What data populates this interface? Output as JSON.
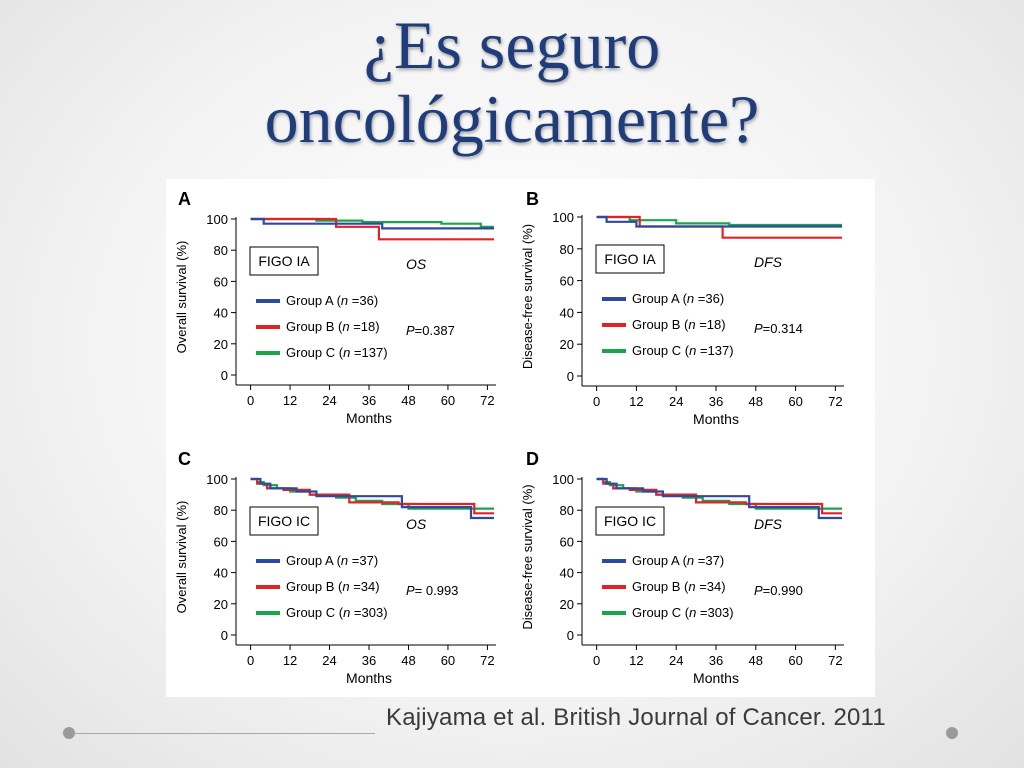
{
  "slide": {
    "title_line1": "¿Es seguro",
    "title_line2": "oncológicamente?",
    "citation": "Kajiyama et al. British Journal of Cancer. 2011"
  },
  "colors": {
    "title": "#1f3d7a",
    "group_a": "#2c4aa0",
    "group_b": "#e32228",
    "group_c": "#1aa54b"
  },
  "chart_data": [
    {
      "type": "line",
      "panel": "A",
      "box_label": "FIGO IA",
      "metric": "OS",
      "ylabel": "Overall survival (%)",
      "xlabel": "Months",
      "xticks": [
        0,
        12,
        24,
        36,
        48,
        60,
        72
      ],
      "yticks": [
        0,
        20,
        40,
        60,
        80,
        100
      ],
      "xlim": [
        -2,
        74
      ],
      "ylim": [
        0,
        100
      ],
      "p_value": "=0.387",
      "series": [
        {
          "name": "Group A",
          "n": "=36",
          "color": "#2c4aa0",
          "x": [
            0,
            4,
            4,
            8,
            8,
            40,
            40,
            74
          ],
          "y": [
            100,
            100,
            97,
            97,
            97,
            97,
            94,
            94
          ]
        },
        {
          "name": "Group B",
          "n": "=18",
          "color": "#e32228",
          "x": [
            0,
            26,
            26,
            39,
            39,
            74
          ],
          "y": [
            100,
            100,
            95,
            95,
            87,
            87
          ]
        },
        {
          "name": "Group C",
          "n": "=137",
          "color": "#1aa54b",
          "x": [
            0,
            8,
            8,
            20,
            20,
            34,
            34,
            58,
            58,
            70,
            70,
            74
          ],
          "y": [
            100,
            100,
            100,
            100,
            99,
            99,
            98,
            98,
            97,
            97,
            95,
            95
          ]
        }
      ]
    },
    {
      "type": "line",
      "panel": "B",
      "box_label": "FIGO IA",
      "metric": "DFS",
      "ylabel": "Disease-free survival (%)",
      "xlabel": "Months",
      "xticks": [
        0,
        12,
        24,
        36,
        48,
        60,
        72
      ],
      "yticks": [
        0,
        20,
        40,
        60,
        80,
        100
      ],
      "xlim": [
        -2,
        74
      ],
      "ylim": [
        0,
        100
      ],
      "p_value": "=0.314",
      "series": [
        {
          "name": "Group A",
          "n": "=36",
          "color": "#2c4aa0",
          "x": [
            0,
            3,
            3,
            12,
            12,
            74
          ],
          "y": [
            100,
            100,
            97,
            97,
            94,
            94
          ]
        },
        {
          "name": "Group B",
          "n": "=18",
          "color": "#e32228",
          "x": [
            0,
            13,
            13,
            38,
            38,
            74
          ],
          "y": [
            100,
            100,
            94,
            94,
            87,
            87
          ]
        },
        {
          "name": "Group C",
          "n": "=137",
          "color": "#1aa54b",
          "x": [
            0,
            10,
            10,
            24,
            24,
            40,
            40,
            74
          ],
          "y": [
            100,
            100,
            98,
            98,
            96,
            96,
            95,
            95
          ]
        }
      ]
    },
    {
      "type": "line",
      "panel": "C",
      "box_label": "FIGO IC",
      "metric": "OS",
      "ylabel": "Overall survival (%)",
      "xlabel": "Months",
      "xticks": [
        0,
        12,
        24,
        36,
        48,
        60,
        72
      ],
      "yticks": [
        0,
        20,
        40,
        60,
        80,
        100
      ],
      "xlim": [
        -2,
        74
      ],
      "ylim": [
        0,
        100
      ],
      "p_value": "= 0.993",
      "series": [
        {
          "name": "Group A",
          "n": "=37",
          "color": "#2c4aa0",
          "x": [
            0,
            3,
            3,
            6,
            6,
            14,
            14,
            20,
            20,
            46,
            46,
            67,
            67,
            74
          ],
          "y": [
            100,
            100,
            97,
            97,
            94,
            94,
            92,
            92,
            89,
            89,
            82,
            82,
            75,
            75
          ]
        },
        {
          "name": "Group B",
          "n": "=34",
          "color": "#e32228",
          "x": [
            0,
            2,
            2,
            5,
            5,
            10,
            10,
            18,
            18,
            30,
            30,
            45,
            45,
            68,
            68,
            74
          ],
          "y": [
            100,
            100,
            97,
            97,
            94,
            94,
            93,
            93,
            90,
            90,
            85,
            85,
            84,
            84,
            78,
            78
          ]
        },
        {
          "name": "Group C",
          "n": "=303",
          "color": "#1aa54b",
          "x": [
            0,
            2,
            2,
            4,
            4,
            8,
            8,
            12,
            12,
            18,
            18,
            26,
            26,
            32,
            32,
            40,
            40,
            48,
            48,
            74
          ],
          "y": [
            100,
            100,
            98,
            98,
            96,
            96,
            94,
            94,
            92,
            92,
            90,
            90,
            88,
            88,
            86,
            86,
            84,
            84,
            81,
            81
          ]
        }
      ]
    },
    {
      "type": "line",
      "panel": "D",
      "box_label": "FIGO IC",
      "metric": "DFS",
      "ylabel": "Disease-free survival (%)",
      "xlabel": "Months",
      "xticks": [
        0,
        12,
        24,
        36,
        48,
        60,
        72
      ],
      "yticks": [
        0,
        20,
        40,
        60,
        80,
        100
      ],
      "xlim": [
        -2,
        74
      ],
      "ylim": [
        0,
        100
      ],
      "p_value": "=0.990",
      "series": [
        {
          "name": "Group A",
          "n": "=37",
          "color": "#2c4aa0",
          "x": [
            0,
            3,
            3,
            6,
            6,
            14,
            14,
            20,
            20,
            46,
            46,
            67,
            67,
            74
          ],
          "y": [
            100,
            100,
            97,
            97,
            94,
            94,
            92,
            92,
            89,
            89,
            82,
            82,
            75,
            75
          ]
        },
        {
          "name": "Group B",
          "n": "=34",
          "color": "#e32228",
          "x": [
            0,
            2,
            2,
            5,
            5,
            10,
            10,
            18,
            18,
            30,
            30,
            45,
            45,
            68,
            68,
            74
          ],
          "y": [
            100,
            100,
            97,
            97,
            94,
            94,
            93,
            93,
            90,
            90,
            85,
            85,
            84,
            84,
            78,
            78
          ]
        },
        {
          "name": "Group C",
          "n": "=303",
          "color": "#1aa54b",
          "x": [
            0,
            2,
            2,
            4,
            4,
            8,
            8,
            12,
            12,
            18,
            18,
            26,
            26,
            32,
            32,
            40,
            40,
            48,
            48,
            74
          ],
          "y": [
            100,
            100,
            98,
            98,
            96,
            96,
            94,
            94,
            92,
            92,
            90,
            90,
            88,
            88,
            86,
            86,
            84,
            84,
            81,
            81
          ]
        }
      ]
    }
  ]
}
